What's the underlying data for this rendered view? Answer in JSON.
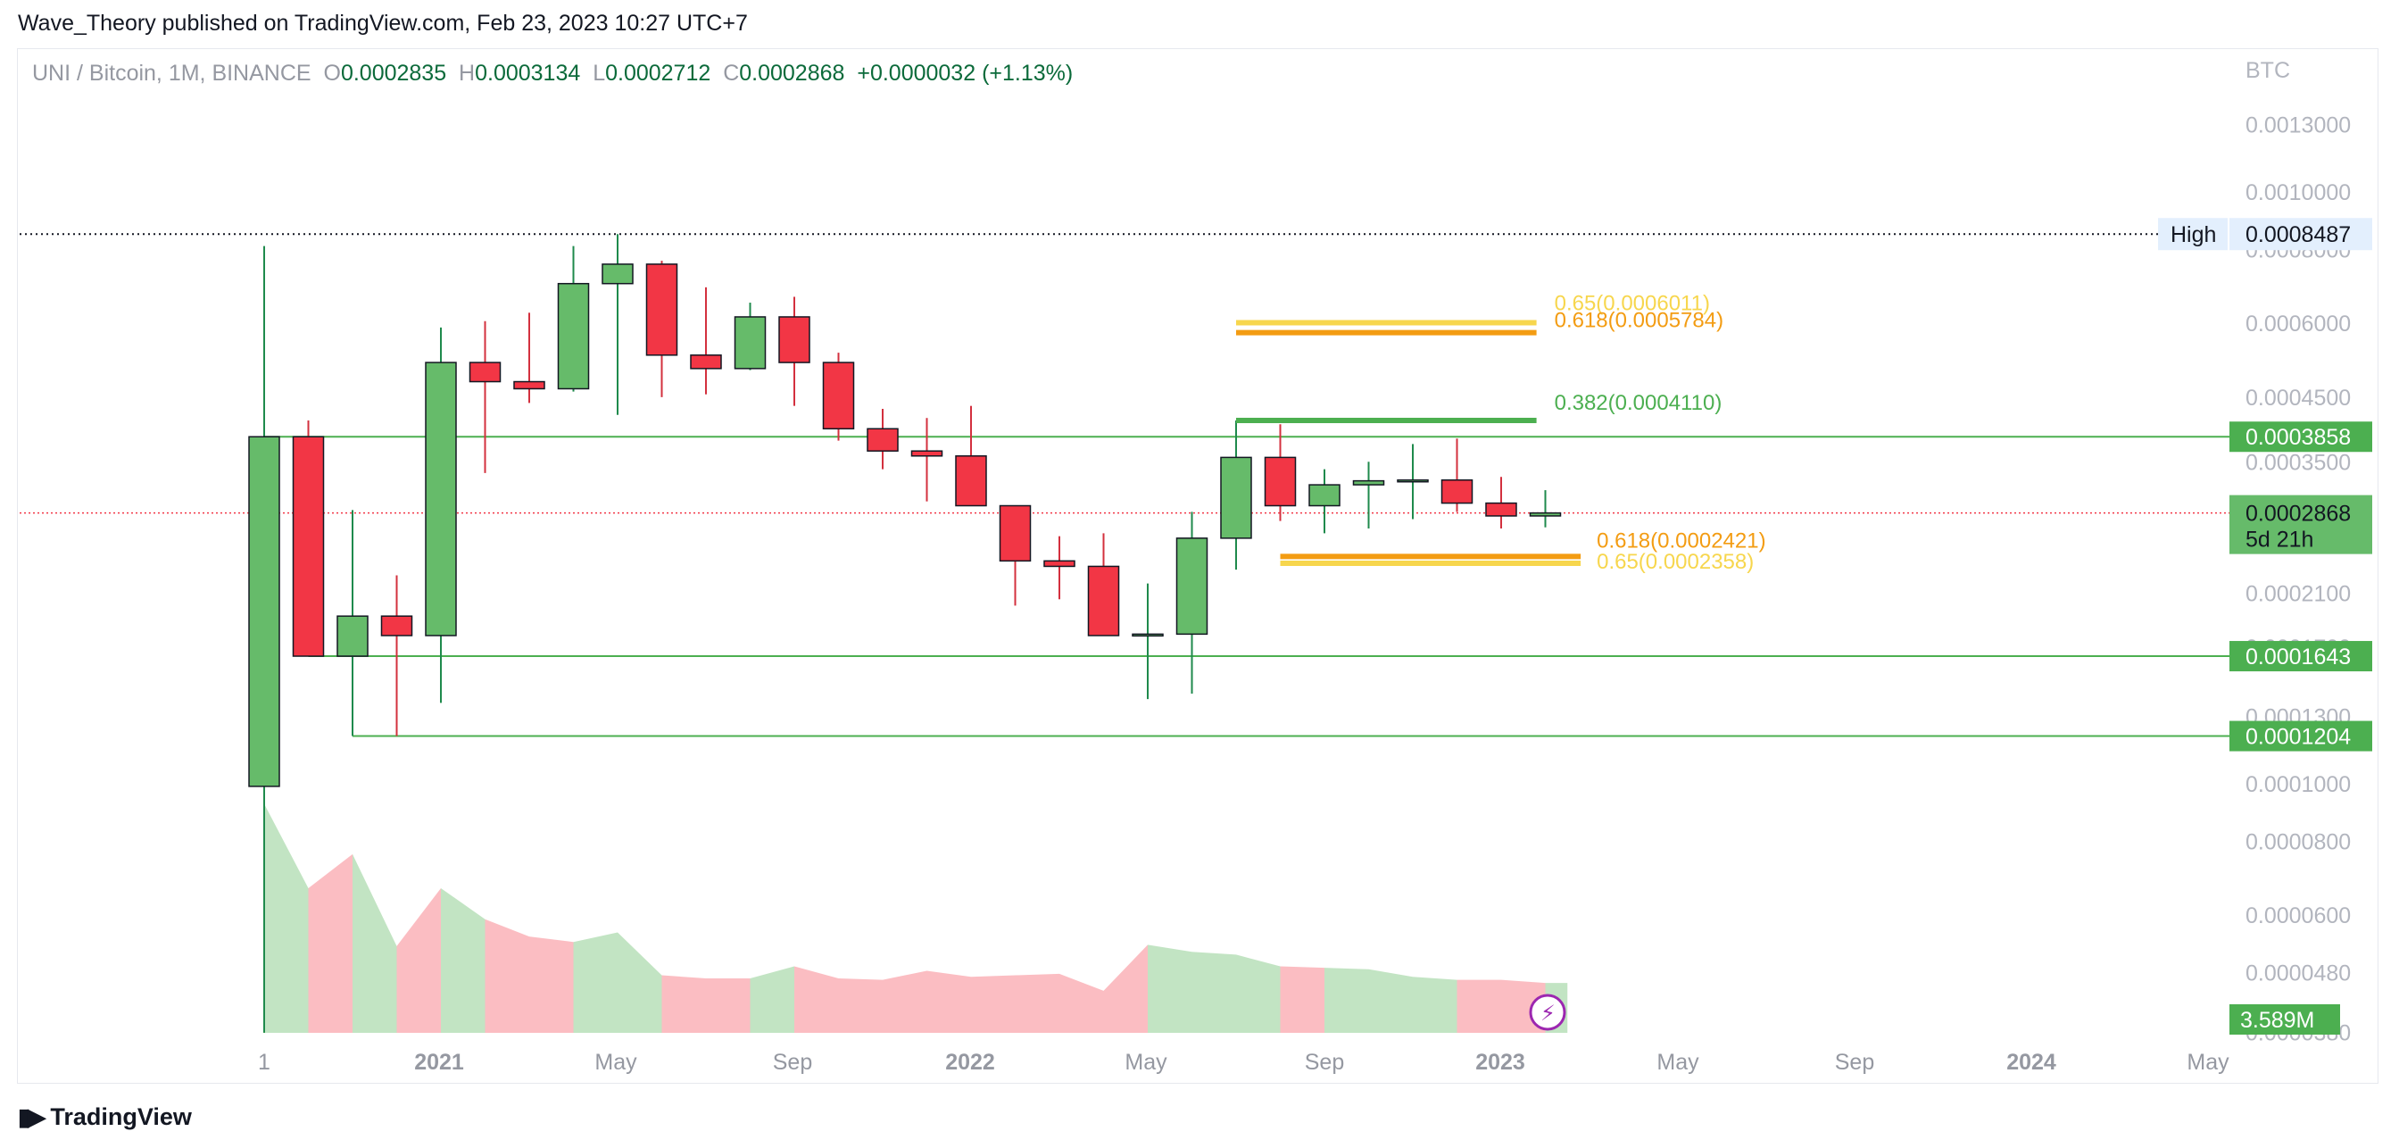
{
  "attribution": "Wave_Theory published on TradingView.com, Feb 23, 2023 10:27 UTC+7",
  "legend": {
    "symbol": "UNI / Bitcoin, 1M, BINANCE",
    "o_label": "O",
    "o": "0.0002835",
    "h_label": "H",
    "h": "0.0003134",
    "l_label": "L",
    "l": "0.0002712",
    "c_label": "C",
    "c": "0.0002868",
    "change": "+0.0000032 (+1.13%)"
  },
  "footer": {
    "brand": "TradingView"
  },
  "chart_data": {
    "type": "candlestick",
    "y_unit": "BTC",
    "y_scale": "log",
    "y_ticks": [
      "0.0013000",
      "0.0010000",
      "0.0008000",
      "0.0006000",
      "0.0004500",
      "0.0003500",
      "0.0002100",
      "0.0001700",
      "0.0001300",
      "0.0001000",
      "0.0000800",
      "0.0000600",
      "0.0000480",
      "0.0000380"
    ],
    "x_ticks": [
      {
        "label": "1",
        "bold": false
      },
      {
        "label": "2021",
        "bold": true
      },
      {
        "label": "May",
        "bold": false
      },
      {
        "label": "Sep",
        "bold": false
      },
      {
        "label": "2022",
        "bold": true
      },
      {
        "label": "May",
        "bold": false
      },
      {
        "label": "Sep",
        "bold": false
      },
      {
        "label": "2023",
        "bold": true
      },
      {
        "label": "May",
        "bold": false
      },
      {
        "label": "Sep",
        "bold": false
      },
      {
        "label": "2024",
        "bold": true
      },
      {
        "label": "May",
        "bold": false
      }
    ],
    "candles": [
      {
        "o": 9.9e-05,
        "h": 0.00081,
        "l": 3.8e-05,
        "c": 0.0003858
      },
      {
        "o": 0.0003858,
        "h": 0.000411,
        "l": 0.0001643,
        "c": 0.0001643
      },
      {
        "o": 0.0001643,
        "h": 0.00029,
        "l": 0.0001204,
        "c": 0.000192
      },
      {
        "o": 0.000192,
        "h": 0.000225,
        "l": 0.0001204,
        "c": 0.000178
      },
      {
        "o": 0.000178,
        "h": 0.00059,
        "l": 0.000137,
        "c": 0.000515
      },
      {
        "o": 0.000515,
        "h": 0.000605,
        "l": 0.000335,
        "c": 0.000478
      },
      {
        "o": 0.000478,
        "h": 0.000625,
        "l": 0.00044,
        "c": 0.000465
      },
      {
        "o": 0.000465,
        "h": 0.00081,
        "l": 0.00046,
        "c": 0.0007
      },
      {
        "o": 0.0007,
        "h": 0.0008487,
        "l": 0.00042,
        "c": 0.000755
      },
      {
        "o": 0.000755,
        "h": 0.000765,
        "l": 0.00045,
        "c": 0.00053
      },
      {
        "o": 0.00053,
        "h": 0.00069,
        "l": 0.000455,
        "c": 0.000503
      },
      {
        "o": 0.000503,
        "h": 0.00065,
        "l": 0.0005,
        "c": 0.000615
      },
      {
        "o": 0.000615,
        "h": 0.000665,
        "l": 0.000435,
        "c": 0.000515
      },
      {
        "o": 0.000515,
        "h": 0.000535,
        "l": 0.00038,
        "c": 0.000398
      },
      {
        "o": 0.000398,
        "h": 0.00043,
        "l": 0.00034,
        "c": 0.000365
      },
      {
        "o": 0.000365,
        "h": 0.000415,
        "l": 0.0003,
        "c": 0.000358
      },
      {
        "o": 0.000358,
        "h": 0.000435,
        "l": 0.000295,
        "c": 0.000295
      },
      {
        "o": 0.000295,
        "h": 0.000295,
        "l": 0.0002,
        "c": 0.000238
      },
      {
        "o": 0.000238,
        "h": 0.000262,
        "l": 0.000205,
        "c": 0.000233
      },
      {
        "o": 0.000233,
        "h": 0.000265,
        "l": 0.000183,
        "c": 0.000178
      },
      {
        "o": 0.000178,
        "h": 0.000218,
        "l": 0.000139,
        "c": 0.000179
      },
      {
        "o": 0.000179,
        "h": 0.000288,
        "l": 0.000142,
        "c": 0.00026
      },
      {
        "o": 0.00026,
        "h": 0.000411,
        "l": 0.00023,
        "c": 0.000356
      },
      {
        "o": 0.000356,
        "h": 0.000405,
        "l": 0.000278,
        "c": 0.000295
      },
      {
        "o": 0.000295,
        "h": 0.00034,
        "l": 0.000265,
        "c": 0.00032
      },
      {
        "o": 0.00032,
        "h": 0.00035,
        "l": 0.00027,
        "c": 0.000325
      },
      {
        "o": 0.000325,
        "h": 0.000375,
        "l": 0.00028,
        "c": 0.000326
      },
      {
        "o": 0.000326,
        "h": 0.000383,
        "l": 0.000288,
        "c": 0.000298
      },
      {
        "o": 0.000298,
        "h": 0.00033,
        "l": 0.00027,
        "c": 0.0002835
      },
      {
        "o": 0.0002835,
        "h": 0.0003134,
        "l": 0.0002712,
        "c": 0.0002868
      }
    ],
    "volume_scale": "log",
    "volume": [
      3800,
      3000,
      3300,
      2550,
      3000,
      2750,
      2620,
      2580,
      2650,
      2350,
      2330,
      2330,
      2410,
      2330,
      2320,
      2380,
      2340,
      2350,
      2360,
      2250,
      2560,
      2510,
      2490,
      2410,
      2400,
      2390,
      2340,
      2320,
      2320,
      2300
    ],
    "volume_label": "3.589M",
    "horizontal_lines": [
      {
        "value": "0.0003858",
        "color": "#4caf50"
      },
      {
        "value": "0.0001643",
        "color": "#4caf50"
      },
      {
        "value": "0.0001204",
        "color": "#4caf50"
      }
    ],
    "high_label": "High",
    "high_value": "0.0008487",
    "last_price": "0.0002868",
    "countdown": "5d 21h",
    "fib_levels": [
      {
        "text": "0.65(0.0006011)",
        "color": "#f7d64d"
      },
      {
        "text": "0.618(0.0005784)",
        "color": "#f39c12"
      },
      {
        "text": "0.382(0.0004110)",
        "color": "#4caf50"
      },
      {
        "text": "0.618(0.0002421)",
        "color": "#f39c12"
      },
      {
        "text": "0.65(0.0002358)",
        "color": "#f7d64d"
      }
    ],
    "colors": {
      "up": "#66bb6a",
      "down": "#f23645",
      "line": "#4caf50",
      "last": "#f23645"
    }
  }
}
